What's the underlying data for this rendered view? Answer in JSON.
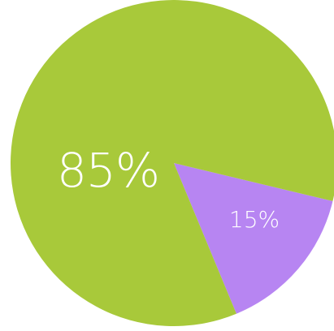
{
  "chart_data": {
    "type": "pie",
    "slices": [
      {
        "label": "85%",
        "value": 85,
        "color": "#a8c93a"
      },
      {
        "label": "15%",
        "value": 15,
        "color": "#b785f2"
      }
    ]
  }
}
